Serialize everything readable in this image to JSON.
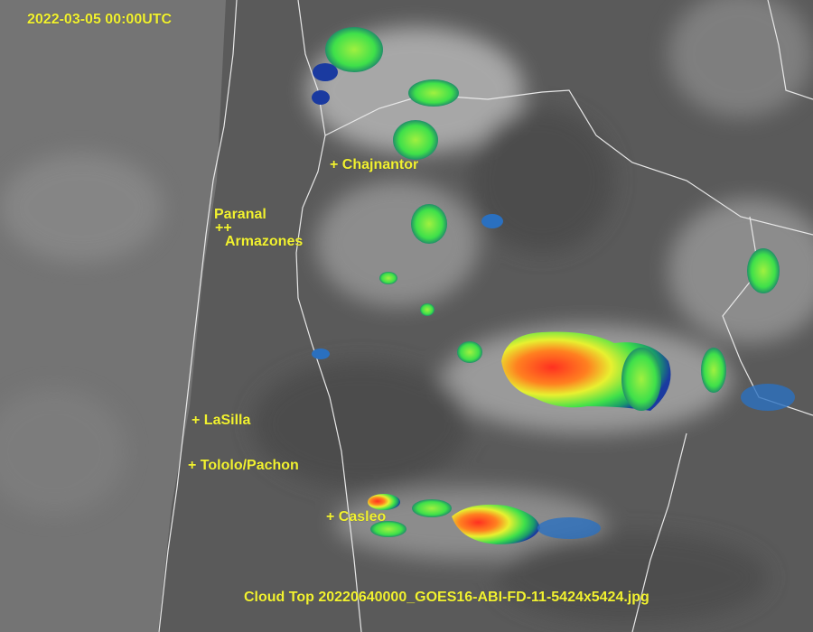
{
  "timestamp": "2022-03-05 00:00UTC",
  "caption": "Cloud Top 20220640000_GOES16-ABI-FD-11-5424x5424.jpg",
  "sites": [
    {
      "label": "+ Chajnantor"
    },
    {
      "label": "Paranal"
    },
    {
      "label": "++"
    },
    {
      "label": "Armazones"
    },
    {
      "label": "+ LaSilla"
    },
    {
      "label": "+ Tololo/Pachon"
    },
    {
      "label": "+ Casleo"
    }
  ],
  "colors": {
    "label": "#f2f230",
    "border": "#e8e8e8",
    "cold_cloud_scale": [
      "#1a3aa0",
      "#2ad0ff",
      "#3ee04a",
      "#e8f030",
      "#ff3020"
    ]
  }
}
